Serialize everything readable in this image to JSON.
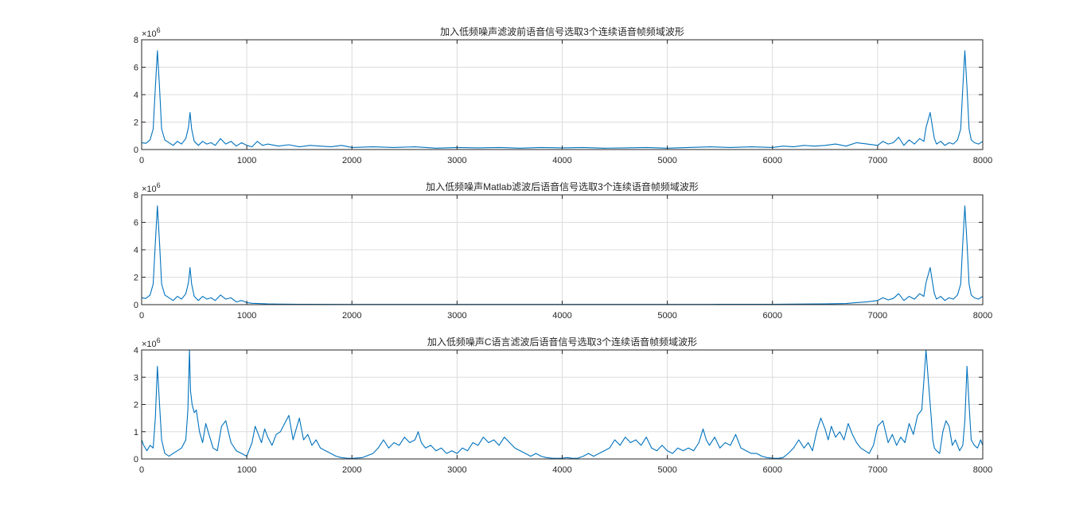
{
  "chart_data": [
    {
      "type": "line",
      "title": "加入低频噪声滤波前语音信号选取3个连续语音帧频域波形",
      "xlabel": "",
      "ylabel": "",
      "xlim": [
        0,
        8000
      ],
      "ylim": [
        0,
        8000000
      ],
      "y_exponent_label": "×10",
      "y_exponent_power": "6",
      "grid": true,
      "x_ticks": [
        {
          "v": 0,
          "label": "0"
        },
        {
          "v": 1000,
          "label": "1000"
        },
        {
          "v": 2000,
          "label": "2000"
        },
        {
          "v": 3000,
          "label": "3000"
        },
        {
          "v": 4000,
          "label": "4000"
        },
        {
          "v": 5000,
          "label": "5000"
        },
        {
          "v": 6000,
          "label": "6000"
        },
        {
          "v": 7000,
          "label": "7000"
        },
        {
          "v": 8000,
          "label": "8000"
        }
      ],
      "y_ticks": [
        {
          "v": 0,
          "label": "0"
        },
        {
          "v": 2000000,
          "label": "2"
        },
        {
          "v": 4000000,
          "label": "4"
        },
        {
          "v": 6000000,
          "label": "6"
        },
        {
          "v": 8000000,
          "label": "8"
        }
      ],
      "color": "#0072bd",
      "series": [
        {
          "x": [
            0,
            40,
            80,
            110,
            130,
            150,
            170,
            190,
            220,
            260,
            300,
            340,
            380,
            420,
            445,
            460,
            475,
            500,
            540,
            580,
            620,
            660,
            700,
            750,
            800,
            850,
            900,
            950,
            1000,
            1050,
            1100,
            1150,
            1200,
            1300,
            1400,
            1500,
            1600,
            1700,
            1800,
            1900,
            2000,
            2200,
            2400,
            2600,
            2800,
            3000,
            3200,
            3400,
            3600,
            3800,
            4000,
            4200,
            4400,
            4600,
            4800,
            5000,
            5200,
            5400,
            5600,
            5800,
            6000,
            6100,
            6200,
            6300,
            6400,
            6500,
            6600,
            6700,
            6800,
            6900,
            7000,
            7050,
            7100,
            7150,
            7200,
            7250,
            7300,
            7350,
            7400,
            7440,
            7460,
            7500,
            7525,
            7540,
            7560,
            7600,
            7640,
            7680,
            7720,
            7760,
            7790,
            7810,
            7830,
            7850,
            7870,
            7890,
            7920,
            7960,
            8000
          ],
          "y": [
            500000,
            450000,
            700000,
            1500000,
            4500000,
            7200000,
            4500000,
            1500000,
            700000,
            500000,
            300000,
            600000,
            400000,
            800000,
            1600000,
            2700000,
            1500000,
            600000,
            300000,
            600000,
            400000,
            500000,
            300000,
            800000,
            400000,
            600000,
            250000,
            500000,
            300000,
            200000,
            600000,
            300000,
            400000,
            250000,
            350000,
            200000,
            300000,
            250000,
            200000,
            300000,
            150000,
            200000,
            150000,
            200000,
            100000,
            150000,
            120000,
            150000,
            100000,
            150000,
            120000,
            150000,
            100000,
            120000,
            150000,
            100000,
            150000,
            200000,
            150000,
            200000,
            150000,
            250000,
            200000,
            300000,
            250000,
            300000,
            400000,
            250000,
            500000,
            400000,
            300000,
            600000,
            400000,
            500000,
            900000,
            300000,
            700000,
            400000,
            800000,
            600000,
            1600000,
            2700000,
            1500000,
            800000,
            400000,
            600000,
            300000,
            500000,
            400000,
            700000,
            1500000,
            4500000,
            7200000,
            4500000,
            1500000,
            700000,
            500000,
            400000,
            600000
          ]
        }
      ]
    },
    {
      "type": "line",
      "title": "加入低频噪声Matlab滤波后语音信号选取3个连续语音帧频域波形",
      "xlabel": "",
      "ylabel": "",
      "xlim": [
        0,
        8000
      ],
      "ylim": [
        0,
        8000000
      ],
      "y_exponent_label": "×10",
      "y_exponent_power": "6",
      "grid": true,
      "x_ticks": [
        {
          "v": 0,
          "label": "0"
        },
        {
          "v": 1000,
          "label": "1000"
        },
        {
          "v": 2000,
          "label": "2000"
        },
        {
          "v": 3000,
          "label": "3000"
        },
        {
          "v": 4000,
          "label": "4000"
        },
        {
          "v": 5000,
          "label": "5000"
        },
        {
          "v": 6000,
          "label": "6000"
        },
        {
          "v": 7000,
          "label": "7000"
        },
        {
          "v": 8000,
          "label": "8000"
        }
      ],
      "y_ticks": [
        {
          "v": 0,
          "label": "0"
        },
        {
          "v": 2000000,
          "label": "2"
        },
        {
          "v": 4000000,
          "label": "4"
        },
        {
          "v": 6000000,
          "label": "6"
        },
        {
          "v": 8000000,
          "label": "8"
        }
      ],
      "color": "#0072bd",
      "series": [
        {
          "x": [
            0,
            40,
            80,
            110,
            130,
            150,
            170,
            190,
            220,
            260,
            300,
            340,
            380,
            420,
            445,
            460,
            475,
            500,
            540,
            580,
            620,
            660,
            700,
            750,
            800,
            850,
            900,
            950,
            1000,
            1050,
            1100,
            1200,
            1300,
            1500,
            2000,
            2500,
            3000,
            3500,
            4000,
            4500,
            5000,
            5500,
            6000,
            6500,
            6700,
            6800,
            6900,
            7000,
            7050,
            7100,
            7150,
            7200,
            7250,
            7300,
            7350,
            7400,
            7440,
            7460,
            7500,
            7525,
            7540,
            7560,
            7600,
            7640,
            7680,
            7720,
            7760,
            7790,
            7810,
            7830,
            7850,
            7870,
            7890,
            7920,
            7960,
            8000
          ],
          "y": [
            500000,
            450000,
            700000,
            1500000,
            4500000,
            7200000,
            4500000,
            1500000,
            700000,
            500000,
            300000,
            600000,
            400000,
            800000,
            1600000,
            2700000,
            1500000,
            600000,
            300000,
            600000,
            400000,
            500000,
            300000,
            700000,
            400000,
            500000,
            200000,
            300000,
            150000,
            100000,
            80000,
            50000,
            40000,
            30000,
            20000,
            20000,
            15000,
            20000,
            15000,
            20000,
            20000,
            25000,
            30000,
            50000,
            80000,
            150000,
            200000,
            300000,
            500000,
            350000,
            450000,
            800000,
            300000,
            600000,
            400000,
            800000,
            600000,
            1600000,
            2700000,
            1500000,
            800000,
            400000,
            600000,
            300000,
            500000,
            400000,
            700000,
            1500000,
            4500000,
            7200000,
            4500000,
            1500000,
            700000,
            500000,
            400000,
            600000
          ]
        }
      ]
    },
    {
      "type": "line",
      "title": "加入低频噪声C语言滤波后语音信号选取3个连续语音帧频域波形",
      "xlabel": "",
      "ylabel": "",
      "xlim": [
        0,
        8000
      ],
      "ylim": [
        0,
        4000000
      ],
      "y_exponent_label": "×10",
      "y_exponent_power": "6",
      "grid": true,
      "x_ticks": [
        {
          "v": 0,
          "label": "0"
        },
        {
          "v": 1000,
          "label": "1000"
        },
        {
          "v": 2000,
          "label": "2000"
        },
        {
          "v": 3000,
          "label": "3000"
        },
        {
          "v": 4000,
          "label": "4000"
        },
        {
          "v": 5000,
          "label": "5000"
        },
        {
          "v": 6000,
          "label": "6000"
        },
        {
          "v": 7000,
          "label": "7000"
        },
        {
          "v": 8000,
          "label": "8000"
        }
      ],
      "y_ticks": [
        {
          "v": 0,
          "label": "0"
        },
        {
          "v": 1000000,
          "label": "1"
        },
        {
          "v": 2000000,
          "label": "2"
        },
        {
          "v": 3000000,
          "label": "3"
        },
        {
          "v": 4000000,
          "label": "4"
        }
      ],
      "color": "#0072bd",
      "series": [
        {
          "x": [
            0,
            20,
            50,
            80,
            110,
            130,
            150,
            170,
            190,
            220,
            260,
            300,
            340,
            380,
            420,
            440,
            455,
            465,
            480,
            500,
            520,
            550,
            580,
            610,
            640,
            680,
            720,
            760,
            800,
            850,
            900,
            950,
            1000,
            1050,
            1080,
            1110,
            1140,
            1170,
            1200,
            1240,
            1280,
            1320,
            1360,
            1400,
            1440,
            1470,
            1500,
            1540,
            1580,
            1620,
            1660,
            1700,
            1750,
            1800,
            1850,
            1900,
            1950,
            2000,
            2100,
            2200,
            2250,
            2300,
            2350,
            2400,
            2450,
            2500,
            2550,
            2600,
            2630,
            2660,
            2700,
            2750,
            2800,
            2850,
            2900,
            2950,
            3000,
            3050,
            3100,
            3150,
            3200,
            3250,
            3300,
            3350,
            3400,
            3450,
            3500,
            3550,
            3600,
            3650,
            3700,
            3750,
            3800,
            3850,
            3900,
            3950,
            4000,
            4050,
            4100,
            4150,
            4200,
            4250,
            4300,
            4350,
            4400,
            4450,
            4500,
            4550,
            4600,
            4650,
            4700,
            4750,
            4800,
            4850,
            4900,
            4950,
            5000,
            5050,
            5100,
            5150,
            5200,
            5250,
            5300,
            5340,
            5370,
            5400,
            5450,
            5500,
            5550,
            5600,
            5650,
            5700,
            5750,
            5800,
            5850,
            5900,
            5950,
            6000,
            6050,
            6100,
            6150,
            6200,
            6250,
            6300,
            6340,
            6380,
            6420,
            6460,
            6500,
            6530,
            6560,
            6600,
            6640,
            6680,
            6720,
            6760,
            6800,
            6840,
            6880,
            6920,
            6960,
            7000,
            7050,
            7100,
            7140,
            7180,
            7220,
            7260,
            7300,
            7340,
            7380,
            7420,
            7460,
            7490,
            7510,
            7525,
            7540,
            7560,
            7590,
            7620,
            7650,
            7680,
            7710,
            7740,
            7780,
            7810,
            7830,
            7850,
            7870,
            7890,
            7920,
            7950,
            7980,
            8000
          ],
          "y": [
            700000,
            500000,
            300000,
            500000,
            400000,
            1500000,
            3400000,
            2000000,
            700000,
            200000,
            100000,
            200000,
            300000,
            400000,
            700000,
            1800000,
            4200000,
            2500000,
            2000000,
            1700000,
            1800000,
            1000000,
            600000,
            1300000,
            900000,
            400000,
            300000,
            1200000,
            1400000,
            600000,
            300000,
            200000,
            100000,
            600000,
            1200000,
            900000,
            600000,
            1100000,
            800000,
            500000,
            900000,
            1000000,
            1300000,
            1600000,
            700000,
            1100000,
            1500000,
            700000,
            900000,
            500000,
            700000,
            400000,
            300000,
            200000,
            100000,
            50000,
            30000,
            20000,
            50000,
            200000,
            400000,
            700000,
            400000,
            600000,
            500000,
            800000,
            600000,
            700000,
            1000000,
            600000,
            400000,
            500000,
            300000,
            400000,
            200000,
            300000,
            200000,
            400000,
            300000,
            600000,
            500000,
            800000,
            600000,
            700000,
            500000,
            800000,
            600000,
            400000,
            300000,
            200000,
            100000,
            200000,
            100000,
            50000,
            30000,
            20000,
            30000,
            50000,
            20000,
            30000,
            100000,
            200000,
            100000,
            200000,
            300000,
            400000,
            700000,
            500000,
            800000,
            600000,
            700000,
            500000,
            800000,
            400000,
            300000,
            500000,
            300000,
            200000,
            400000,
            300000,
            400000,
            300000,
            600000,
            1100000,
            700000,
            500000,
            800000,
            400000,
            600000,
            500000,
            900000,
            400000,
            300000,
            200000,
            200000,
            100000,
            50000,
            30000,
            20000,
            50000,
            200000,
            400000,
            700000,
            400000,
            600000,
            300000,
            1000000,
            1500000,
            1100000,
            700000,
            1200000,
            800000,
            1000000,
            700000,
            1300000,
            900000,
            600000,
            400000,
            300000,
            200000,
            500000,
            1200000,
            1400000,
            600000,
            900000,
            500000,
            800000,
            600000,
            1300000,
            900000,
            1600000,
            1800000,
            4200000,
            2500000,
            1500000,
            700000,
            400000,
            300000,
            200000,
            1000000,
            1400000,
            1200000,
            500000,
            700000,
            300000,
            500000,
            1400000,
            3400000,
            2000000,
            700000,
            500000,
            400000,
            700000,
            500000
          ]
        }
      ]
    }
  ]
}
